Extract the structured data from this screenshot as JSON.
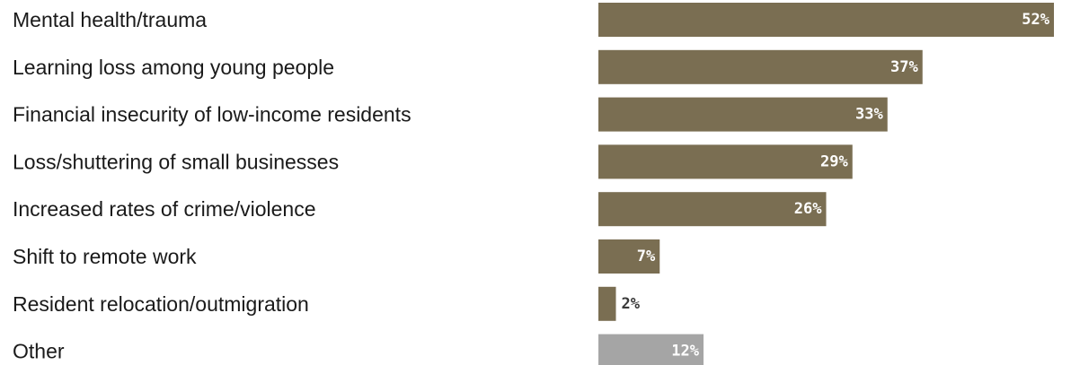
{
  "colors": {
    "bar": "#7a6e52",
    "other_bar": "#a5a5a5",
    "label_text": "#1a1a1a",
    "inside_value_text": "#ffffff",
    "outside_value_text": "#3a3a3a"
  },
  "chart_data": {
    "type": "bar",
    "orientation": "horizontal",
    "categories": [
      "Mental health/trauma",
      "Learning loss among young people",
      "Financial insecurity of low-income residents",
      "Loss/shuttering of small businesses",
      "Increased rates of crime/violence",
      "Shift to remote work",
      "Resident relocation/outmigration",
      "Other"
    ],
    "values": [
      52,
      37,
      33,
      29,
      26,
      7,
      2,
      12
    ],
    "value_labels": [
      "52%",
      "37%",
      "33%",
      "29%",
      "26%",
      "7%",
      "2%",
      "12%"
    ],
    "bar_colors": [
      "bar",
      "bar",
      "bar",
      "bar",
      "bar",
      "bar",
      "bar",
      "other_bar"
    ],
    "xlim": [
      0,
      52
    ],
    "grid": false,
    "legend": "none"
  }
}
